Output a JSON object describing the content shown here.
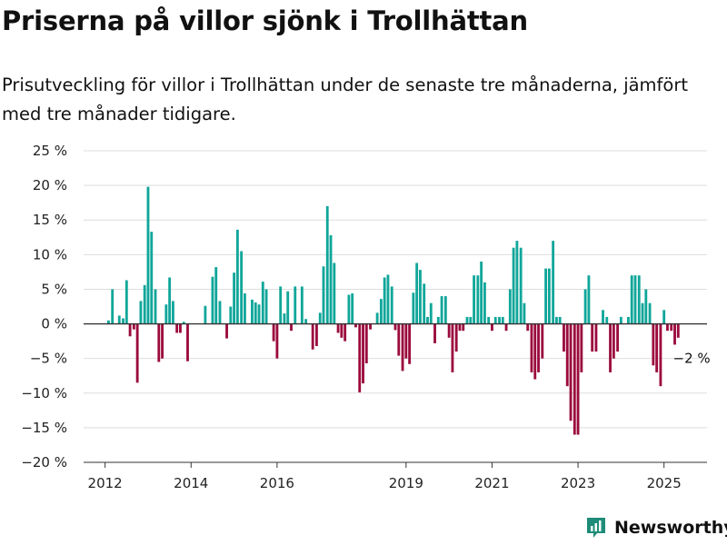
{
  "colors": {
    "positive": "#10a69a",
    "negative": "#9b0a3d",
    "grid": "#dddddd",
    "axis": "#333333",
    "brand": "#1e8c78"
  },
  "brand": {
    "name": "Newsworthy",
    "icon": "bar-chart-logo-icon"
  },
  "chart_data": {
    "type": "bar",
    "title": "Priserna på villor sjönk i Trollhättan",
    "subtitle": "Prisutveckling för villor i Trollhättan under de senaste tre månaderna, jämfört med tre månader tidigare.",
    "ylim": [
      -20,
      25
    ],
    "yticks": [
      25,
      20,
      15,
      10,
      5,
      0,
      -5,
      -10,
      -15,
      -20
    ],
    "ytick_labels": [
      "25 %",
      "20 %",
      "15 %",
      "10 %",
      "5 %",
      "0 %",
      "−5 %",
      "−10 %",
      "−15 %",
      "−20 %"
    ],
    "xlim": [
      2011.5,
      2026.0
    ],
    "xticks": [
      2012,
      2014,
      2016,
      2019,
      2021,
      2023,
      2025
    ],
    "xtick_labels": [
      "2012",
      "2014",
      "2016",
      "2019",
      "2021",
      "2023",
      "2025"
    ],
    "grid": true,
    "annotation": {
      "label": "−2 %",
      "x": 2025.25,
      "y": -2
    },
    "points": [
      [
        2012.08,
        0.5
      ],
      [
        2012.17,
        5.0
      ],
      [
        2012.25,
        0
      ],
      [
        2012.33,
        1.2
      ],
      [
        2012.42,
        0.8
      ],
      [
        2012.5,
        6.3
      ],
      [
        2012.58,
        -1.8
      ],
      [
        2012.67,
        -0.8
      ],
      [
        2012.75,
        -8.5
      ],
      [
        2012.83,
        3.3
      ],
      [
        2012.92,
        5.6
      ],
      [
        2013.0,
        19.8
      ],
      [
        2013.08,
        13.3
      ],
      [
        2013.17,
        5.0
      ],
      [
        2013.25,
        -5.5
      ],
      [
        2013.33,
        -5.0
      ],
      [
        2013.42,
        2.8
      ],
      [
        2013.5,
        6.7
      ],
      [
        2013.58,
        3.3
      ],
      [
        2013.67,
        -1.3
      ],
      [
        2013.75,
        -1.3
      ],
      [
        2013.83,
        0.3
      ],
      [
        2013.92,
        -5.4
      ],
      [
        2014.0,
        0
      ],
      [
        2014.08,
        0
      ],
      [
        2014.17,
        0
      ],
      [
        2014.25,
        0
      ],
      [
        2014.33,
        2.6
      ],
      [
        2014.42,
        0
      ],
      [
        2014.5,
        6.8
      ],
      [
        2014.58,
        8.2
      ],
      [
        2014.67,
        3.3
      ],
      [
        2014.75,
        0
      ],
      [
        2014.83,
        -2.1
      ],
      [
        2014.92,
        2.5
      ],
      [
        2015.0,
        7.4
      ],
      [
        2015.08,
        13.6
      ],
      [
        2015.17,
        10.5
      ],
      [
        2015.25,
        4.4
      ],
      [
        2015.33,
        0
      ],
      [
        2015.42,
        3.5
      ],
      [
        2015.5,
        3.1
      ],
      [
        2015.58,
        2.8
      ],
      [
        2015.67,
        6.1
      ],
      [
        2015.75,
        5.0
      ],
      [
        2015.83,
        0
      ],
      [
        2015.92,
        -2.5
      ],
      [
        2016.0,
        -5.0
      ],
      [
        2016.08,
        5.4
      ],
      [
        2016.17,
        1.5
      ],
      [
        2016.25,
        4.7
      ],
      [
        2016.33,
        -1.0
      ],
      [
        2016.42,
        5.4
      ],
      [
        2016.5,
        0
      ],
      [
        2016.58,
        5.4
      ],
      [
        2016.67,
        0.7
      ],
      [
        2016.75,
        0
      ],
      [
        2016.83,
        -3.7
      ],
      [
        2016.92,
        -3.2
      ],
      [
        2017.0,
        1.6
      ],
      [
        2017.08,
        8.3
      ],
      [
        2017.17,
        17.0
      ],
      [
        2017.25,
        12.8
      ],
      [
        2017.33,
        8.8
      ],
      [
        2017.42,
        -1.3
      ],
      [
        2017.5,
        -2.0
      ],
      [
        2017.58,
        -2.5
      ],
      [
        2017.67,
        4.2
      ],
      [
        2017.75,
        4.4
      ],
      [
        2017.83,
        -0.5
      ],
      [
        2017.92,
        -9.9
      ],
      [
        2018.0,
        -8.6
      ],
      [
        2018.08,
        -5.7
      ],
      [
        2018.17,
        -0.8
      ],
      [
        2018.25,
        0
      ],
      [
        2018.33,
        1.6
      ],
      [
        2018.42,
        3.6
      ],
      [
        2018.5,
        6.7
      ],
      [
        2018.58,
        7.1
      ],
      [
        2018.67,
        5.4
      ],
      [
        2018.75,
        -0.9
      ],
      [
        2018.83,
        -4.6
      ],
      [
        2018.92,
        -6.8
      ],
      [
        2019.0,
        -5.0
      ],
      [
        2019.08,
        -5.8
      ],
      [
        2019.17,
        4.5
      ],
      [
        2019.25,
        8.8
      ],
      [
        2019.33,
        7.8
      ],
      [
        2019.42,
        5.8
      ],
      [
        2019.5,
        1.0
      ],
      [
        2019.58,
        3.0
      ],
      [
        2019.67,
        -2.8
      ],
      [
        2019.75,
        1.0
      ],
      [
        2019.83,
        4.0
      ],
      [
        2019.92,
        4.0
      ],
      [
        2020.0,
        -2.0
      ],
      [
        2020.08,
        -7.0
      ],
      [
        2020.17,
        -4.0
      ],
      [
        2020.25,
        -1.0
      ],
      [
        2020.33,
        -1.0
      ],
      [
        2020.42,
        1.0
      ],
      [
        2020.5,
        1.0
      ],
      [
        2020.58,
        7.0
      ],
      [
        2020.67,
        7.0
      ],
      [
        2020.75,
        9.0
      ],
      [
        2020.83,
        6.0
      ],
      [
        2020.92,
        1.0
      ],
      [
        2021.0,
        -1.0
      ],
      [
        2021.08,
        1.0
      ],
      [
        2021.17,
        1.0
      ],
      [
        2021.25,
        1.0
      ],
      [
        2021.33,
        -1.0
      ],
      [
        2021.42,
        5.0
      ],
      [
        2021.5,
        11.0
      ],
      [
        2021.58,
        12.0
      ],
      [
        2021.67,
        11.0
      ],
      [
        2021.75,
        3.0
      ],
      [
        2021.83,
        -1.0
      ],
      [
        2021.92,
        -7.0
      ],
      [
        2022.0,
        -8.0
      ],
      [
        2022.08,
        -7.0
      ],
      [
        2022.17,
        -5.0
      ],
      [
        2022.25,
        8.0
      ],
      [
        2022.33,
        8.0
      ],
      [
        2022.42,
        12.0
      ],
      [
        2022.5,
        1.0
      ],
      [
        2022.58,
        1.0
      ],
      [
        2022.67,
        -4.0
      ],
      [
        2022.75,
        -9.0
      ],
      [
        2022.83,
        -14.0
      ],
      [
        2022.92,
        -16.0
      ],
      [
        2023.0,
        -16.0
      ],
      [
        2023.08,
        -7.0
      ],
      [
        2023.17,
        5.0
      ],
      [
        2023.25,
        7.0
      ],
      [
        2023.33,
        -4.0
      ],
      [
        2023.42,
        -4.0
      ],
      [
        2023.5,
        0
      ],
      [
        2023.58,
        2.0
      ],
      [
        2023.67,
        1.0
      ],
      [
        2023.75,
        -7.0
      ],
      [
        2023.83,
        -5.0
      ],
      [
        2023.92,
        -4.0
      ],
      [
        2024.0,
        1.0
      ],
      [
        2024.08,
        0
      ],
      [
        2024.17,
        1.0
      ],
      [
        2024.25,
        7.0
      ],
      [
        2024.33,
        7.0
      ],
      [
        2024.42,
        7.0
      ],
      [
        2024.5,
        3.0
      ],
      [
        2024.58,
        5.0
      ],
      [
        2024.67,
        3.0
      ],
      [
        2024.75,
        -6.0
      ],
      [
        2024.83,
        -7.0
      ],
      [
        2024.92,
        -9.0
      ],
      [
        2025.0,
        2.0
      ],
      [
        2025.08,
        -1.0
      ],
      [
        2025.17,
        -1.0
      ],
      [
        2025.25,
        -3.0
      ],
      [
        2025.33,
        -2.0
      ]
    ]
  }
}
